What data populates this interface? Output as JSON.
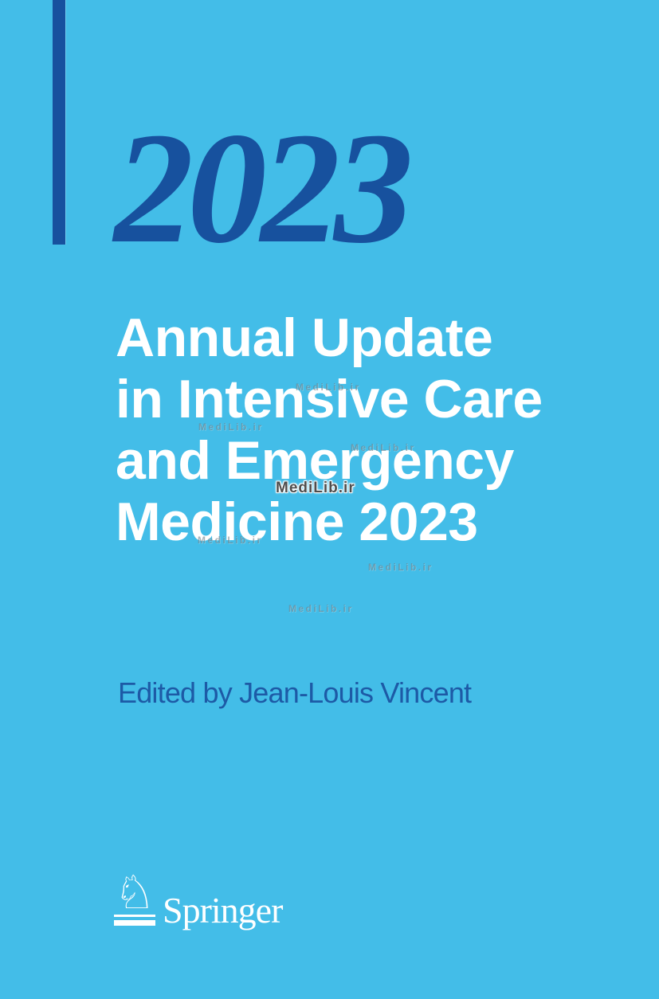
{
  "cover": {
    "year": "2023",
    "title_lines": [
      "Annual Update",
      "in Intensive Care",
      "and Emergency",
      "Medicine 2023"
    ],
    "editor": "Edited by Jean-Louis Vincent",
    "publisher": {
      "name": "Springer",
      "logo_glyph": "♘"
    },
    "watermark_text": "MediLib.ir",
    "colors": {
      "background": "#43BDE8",
      "navy": "#17519E",
      "editor_blue": "#1D5AA6",
      "title": "#FFFFFF"
    }
  }
}
